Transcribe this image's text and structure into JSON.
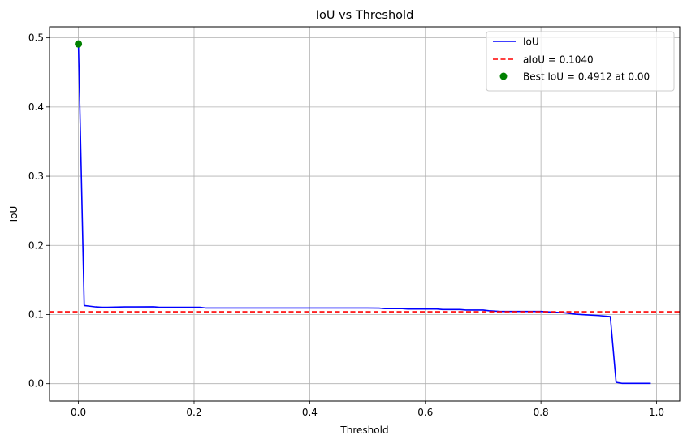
{
  "chart_data": {
    "type": "line",
    "title": "IoU vs Threshold",
    "xlabel": "Threshold",
    "ylabel": "IoU",
    "xlim": [
      -0.05,
      1.04
    ],
    "ylim": [
      -0.025,
      0.516
    ],
    "xticks": [
      0.0,
      0.2,
      0.4,
      0.6,
      0.8,
      1.0
    ],
    "xtick_labels": [
      "0.0",
      "0.2",
      "0.4",
      "0.6",
      "0.8",
      "1.0"
    ],
    "yticks": [
      0.0,
      0.1,
      0.2,
      0.3,
      0.4,
      0.5
    ],
    "ytick_labels": [
      "0.0",
      "0.1",
      "0.2",
      "0.3",
      "0.4",
      "0.5"
    ],
    "grid": true,
    "legend_position": "top-right",
    "colors": {
      "iou": "#0000ff",
      "aiou": "#ff0000",
      "best": "#008000",
      "grid": "#b0b0b0"
    },
    "series": [
      {
        "name": "IoU",
        "style": "solid",
        "x": [
          0.0,
          0.01,
          0.02,
          0.03,
          0.04,
          0.05,
          0.08,
          0.1,
          0.13,
          0.14,
          0.2,
          0.21,
          0.22,
          0.3,
          0.4,
          0.5,
          0.52,
          0.53,
          0.56,
          0.57,
          0.62,
          0.63,
          0.66,
          0.67,
          0.7,
          0.71,
          0.73,
          0.8,
          0.84,
          0.86,
          0.88,
          0.9,
          0.92,
          0.93,
          0.94,
          0.95,
          0.99
        ],
        "y": [
          0.4912,
          0.113,
          0.112,
          0.111,
          0.1105,
          0.1105,
          0.111,
          0.111,
          0.1112,
          0.1105,
          0.1105,
          0.1105,
          0.1095,
          0.1095,
          0.1095,
          0.1095,
          0.1093,
          0.1085,
          0.1085,
          0.108,
          0.108,
          0.1072,
          0.1072,
          0.1065,
          0.1065,
          0.1055,
          0.1045,
          0.1045,
          0.1025,
          0.1005,
          0.0995,
          0.0985,
          0.097,
          0.002,
          0.0005,
          0.0005,
          0.0005
        ]
      },
      {
        "name": "aIoU = 0.1040",
        "style": "dashed",
        "value": 0.104
      },
      {
        "name": "Best IoU = 0.4912 at 0.00",
        "style": "marker",
        "x": [
          0.0
        ],
        "y": [
          0.4912
        ]
      }
    ]
  }
}
